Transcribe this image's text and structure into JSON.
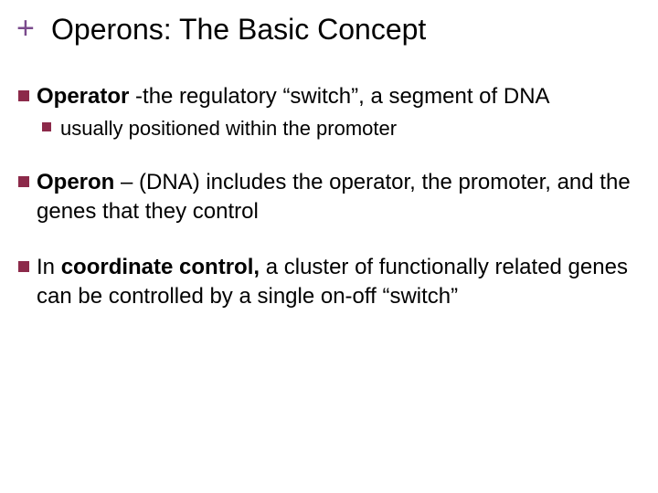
{
  "colors": {
    "plus": "#7a4a8c",
    "bullet": "#8c2a4a",
    "text": "#000000",
    "background": "#ffffff"
  },
  "title": "Operons: The Basic Concept",
  "items": [
    {
      "bold": "Operator",
      "rest": " -the regulatory “switch”, a segment of DNA",
      "sub": [
        {
          "text": "usually positioned within the promoter"
        }
      ]
    },
    {
      "bold": "Operon",
      "rest": " – (DNA) includes the operator, the promoter, and the genes that they control"
    },
    {
      "lead": "In ",
      "bold": "coordinate control,",
      "rest": " a cluster of functionally related genes can be controlled by a single on-off “switch”"
    }
  ]
}
